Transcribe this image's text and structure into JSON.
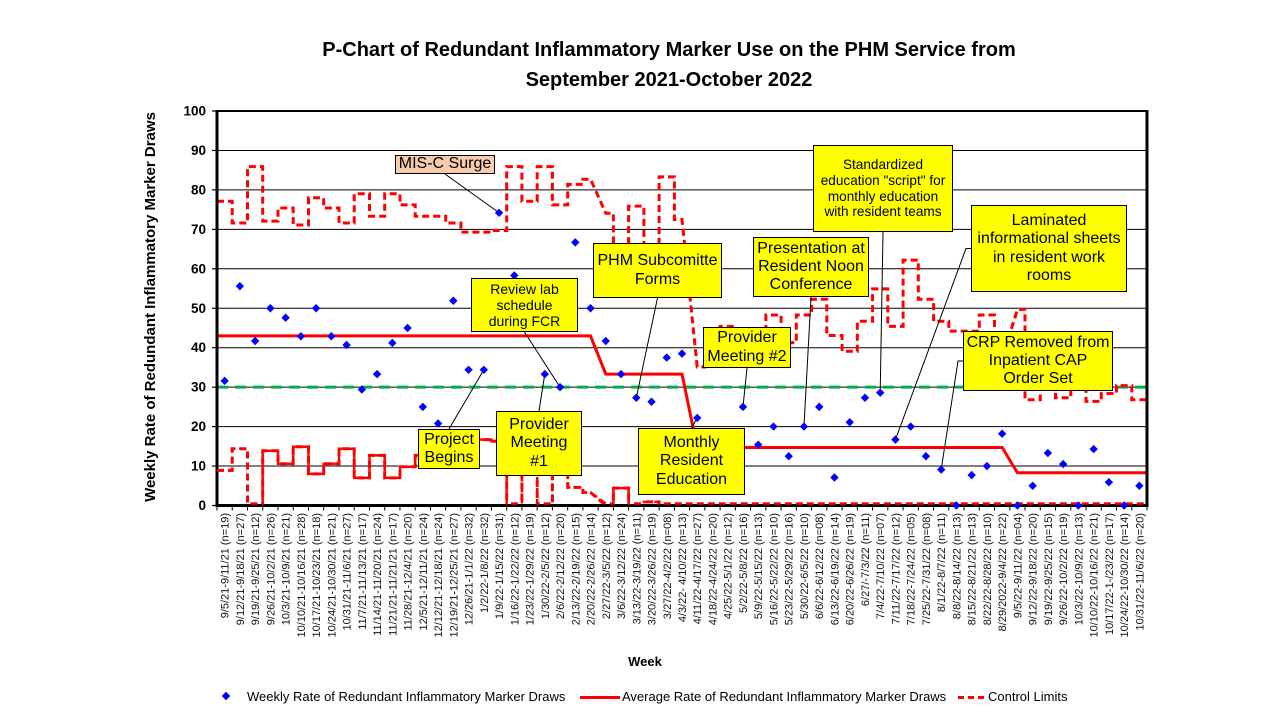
{
  "chart_data": {
    "type": "line",
    "title": "P-Chart of Redundant Inflammatory Marker Use on the PHM Service from September 2021-October 2022",
    "xlabel": "Week",
    "ylabel": "Weekly Rate of Redundant Inflammatory Marker Draws",
    "ylim": [
      0,
      100
    ],
    "yticks": [
      0,
      10,
      20,
      30,
      40,
      50,
      60,
      70,
      80,
      90,
      100
    ],
    "grid": true,
    "legend_position": "bottom",
    "categories": [
      "9/5/21-9/11/21 (n=19)",
      "9/12/21-9/18/21 (n=27)",
      "9/19/21-9/25/21 (n=12)",
      "9/26/21-10/2/21 (n=26)",
      "10/3/21-10/9/21 (n=21)",
      "10/10/21-10/16/21 (n=28)",
      "10/17/21-10/23/21 (n=18)",
      "10/24/21-10/30/21 (n=21)",
      "10/31/21-11/6/21 (n=27)",
      "11/7/21-11/13/21 (n=17)",
      "11/14/21-11/20/21 (n=24)",
      "11/21/21-11/21/21 (n=17)",
      "11/28/21-12/4/21 (n=20)",
      "12/5/21-12/11/21 (n=24)",
      "12/12/21-12/18/21 (n=24)",
      "12/19/21-12/25/21 (n=27)",
      "12/26/21-1/1/22 (n=32)",
      "1/2/22-1/8/22 (n=32)",
      "1/9/22-1/15/22 (n=31)",
      "1/16/22-1/22/22 (n=12)",
      "1/23/22-1/29/22 (n=19)",
      "1/30/22-2/5/22 (n=12)",
      "2/6/22-2/12/22 (n=20)",
      "2/13/22-2/19/22 (n=15)",
      "2/20/22-2/26/22 (n=14)",
      "2/27/22-3/5/22 (n=12)",
      "3/6/22-3/12/22 (n=24)",
      "3/13/22-3/19/22 (n=11)",
      "3/20/22-3/26/22 (n=19)",
      "3/27/22-4/2/22 (n=08)",
      "4/3/22- 4/10/22 (n=13)",
      "4/11/22-4/17/22 (n=27)",
      "4/18/22-4/24/22 (n=20)",
      "4/25/22-5/1/22 (n=12)",
      "5/2/22-5/8/22 (n=16)",
      "5/9/22-5/15/22 (n=13)",
      "5/16/22-5/22/22 (n=10)",
      "5/23/22-5/29/22 (n=16)",
      "5/30/22-6/5/22 (n=10)",
      "6/6/22-6/12/22 (n=08)",
      "6/13/22-6/19/22 (n=14)",
      "6/20/22-6/26/22 (n=19)",
      "6/27/-7/3/22 (n=11)",
      "7/4/22-7/10/22 (n=07)",
      "7/11/22-7/17/22 (n=12)",
      "7/18/22-7/24/22 (n=05)",
      "7/25/22-7/31/22 (n=08)",
      "8/1/22-8/7/22 (n=11)",
      "8/8/22-8/14/22 (n=13)",
      "8/15/22-8/21/22 (n=13)",
      "8/22/22-8/28/22 (n=10)",
      "8/29/2022-9/4/22 (n=22)",
      "9/5/22-9/11/22 (n=04)",
      "9/12/22-9/18/22 (n=20)",
      "9/19/22-9/25/22 (n=15)",
      "9/26/22-10/2/22 (n=19)",
      "10/3/22-10/9/22 (n=13)",
      "10/10/22-10/16/22 (n=21)",
      "10/17/22-1-/23/22 (n=17)",
      "10/24/22-10/30/22 (n=14)",
      "10/31/22-11/6/22 (n=20)"
    ],
    "phases": [
      {
        "start_week": 1,
        "end_week": 25
      },
      {
        "start_week": 26,
        "end_week": 31
      },
      {
        "start_week": 32,
        "end_week": 52
      },
      {
        "start_week": 53,
        "end_week": 61
      }
    ],
    "series": [
      {
        "name": "Weekly Rate of Redundant Inflammatory Marker Draws",
        "type": "scatter",
        "marker": "diamond",
        "color": "#0000FF",
        "values": [
          31.6,
          55.6,
          41.7,
          50.0,
          47.6,
          42.9,
          50.0,
          42.9,
          40.7,
          29.4,
          33.3,
          41.2,
          45.0,
          25.0,
          20.8,
          51.9,
          34.4,
          34.4,
          74.2,
          58.3,
          null,
          33.3,
          30.0,
          66.7,
          50.0,
          41.7,
          33.3,
          27.3,
          26.3,
          37.5,
          38.5,
          22.2,
          null,
          null,
          25.0,
          15.4,
          20.0,
          12.5,
          20.0,
          25.0,
          7.1,
          21.1,
          27.3,
          28.6,
          16.7,
          20.0,
          12.5,
          9.1,
          0,
          7.7,
          10.0,
          18.2,
          0,
          5.0,
          13.3,
          10.5,
          0,
          14.3,
          5.9,
          0,
          5.0
        ]
      },
      {
        "name": "Average Rate of Redundant Inflammatory Marker Draws",
        "type": "step-line",
        "color": "#FF0000",
        "values": [
          43.0,
          43.0,
          43.0,
          43.0,
          43.0,
          43.0,
          43.0,
          43.0,
          43.0,
          43.0,
          43.0,
          43.0,
          43.0,
          43.0,
          43.0,
          43.0,
          43.0,
          43.0,
          43.0,
          43.0,
          43.0,
          43.0,
          43.0,
          43.0,
          43.0,
          33.3,
          33.3,
          33.3,
          33.3,
          33.3,
          33.3,
          14.7,
          14.7,
          14.7,
          14.7,
          14.7,
          14.7,
          14.7,
          14.7,
          14.7,
          14.7,
          14.7,
          14.7,
          14.7,
          14.7,
          14.7,
          14.7,
          14.7,
          14.7,
          14.7,
          14.7,
          14.7,
          8.3,
          8.3,
          8.3,
          8.3,
          8.3,
          8.3,
          8.3,
          8.3,
          8.3
        ]
      },
      {
        "name": "Control Limits",
        "type": "dashed-step-line",
        "color": "#FF0000",
        "upper": [
          77.1,
          71.6,
          85.9,
          72.1,
          75.4,
          71.1,
          78.0,
          75.4,
          71.6,
          79.0,
          73.3,
          79.0,
          76.2,
          73.3,
          73.3,
          71.6,
          69.3,
          69.3,
          69.7,
          85.9,
          77.1,
          85.9,
          76.2,
          81.4,
          82.7,
          74.1,
          62.2,
          75.9,
          65.7,
          83.3,
          72.5,
          35.1,
          38.5,
          45.4,
          41.3,
          44.2,
          48.3,
          41.3,
          48.3,
          52.3,
          43.1,
          39.1,
          46.7,
          54.9,
          45.4,
          62.2,
          52.3,
          46.7,
          44.2,
          44.2,
          48.3,
          37.3,
          49.7,
          26.8,
          29.7,
          27.3,
          31.3,
          26.4,
          28.4,
          30.4,
          26.8
        ],
        "lower": [
          8.9,
          14.4,
          0,
          13.9,
          10.6,
          14.9,
          8.0,
          10.6,
          14.4,
          7.0,
          12.7,
          7.0,
          9.8,
          12.7,
          12.7,
          14.4,
          16.7,
          16.7,
          16.3,
          0,
          8.9,
          0,
          9.8,
          4.6,
          3.3,
          0,
          4.4,
          0,
          0.9,
          0,
          0,
          0,
          0,
          0,
          0,
          0,
          0,
          0,
          0,
          0,
          0,
          0,
          0,
          0,
          0,
          0,
          0,
          0,
          0,
          0,
          0,
          0,
          0,
          0,
          0,
          0,
          0,
          0,
          0,
          0,
          0
        ]
      }
    ],
    "reference_line": {
      "value": 30,
      "color": "#00B050",
      "style": "dashed"
    },
    "annotations": [
      {
        "lines": [
          "MIS-C Surge"
        ],
        "target_week": 19,
        "color": "#F8CBAD"
      },
      {
        "lines": [
          "Review lab",
          "schedule",
          "during FCR"
        ],
        "target_week": 23,
        "color": "#FFFF00"
      },
      {
        "lines": [
          "Project",
          "Begins"
        ],
        "target_week": 18,
        "color": "#FFFF00"
      },
      {
        "lines": [
          "Provider",
          "Meeting",
          "#1"
        ],
        "target_week": 22,
        "color": "#FFFF00"
      },
      {
        "lines": [
          "PHM Subcomitte",
          "Forms"
        ],
        "target_week": 28,
        "color": "#FFFF00"
      },
      {
        "lines": [
          "Monthly",
          "Resident",
          "Education"
        ],
        "target_week": 32,
        "color": "#FFFF00"
      },
      {
        "lines": [
          "Provider",
          "Meeting #2"
        ],
        "target_week": 35,
        "color": "#FFFF00"
      },
      {
        "lines": [
          "Presentation at",
          "Resident Noon",
          "Conference"
        ],
        "target_week": 39,
        "color": "#FFFF00"
      },
      {
        "lines": [
          "Standardized",
          "education \"script\" for",
          "monthly education",
          "with resident teams"
        ],
        "target_week": 44,
        "color": "#FFFF00"
      },
      {
        "lines": [
          "Laminated",
          "informational sheets",
          "in resident work",
          "rooms"
        ],
        "target_week": 45,
        "color": "#FFFF00"
      },
      {
        "lines": [
          "CRP Removed from",
          "Inpatient CAP",
          "Order Set"
        ],
        "target_week": 48,
        "color": "#FFFF00"
      }
    ]
  }
}
